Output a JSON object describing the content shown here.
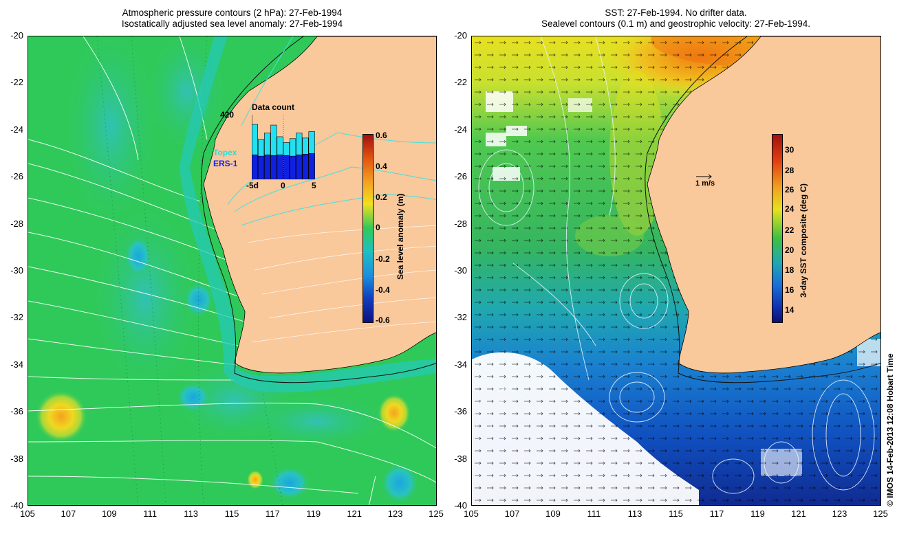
{
  "left_panel": {
    "title_line1": "Atmospheric pressure contours (2 hPa): 27-Feb-1994",
    "title_line2": "Isostatically adjusted sea level anomaly: 27-Feb-1994",
    "colorbar": {
      "label": "Sea level anomaly (m)",
      "ticks": [
        "0.6",
        "0.4",
        "0.2",
        "0",
        "-0.2",
        "-0.4",
        "-0.6"
      ]
    },
    "inset": {
      "title": "Data count",
      "ymax_label": "420",
      "legend_topex": "Topex",
      "legend_ers1": "ERS-1",
      "x_ticks": [
        "-5d",
        "0",
        "5"
      ],
      "total_counts": [
        0.85,
        0.62,
        0.72,
        0.84,
        0.66,
        0.57,
        0.63,
        0.72,
        0.64,
        0.74
      ],
      "ers1_counts": [
        0.38,
        0.36,
        0.38,
        0.37,
        0.38,
        0.37,
        0.36,
        0.38,
        0.39,
        0.4
      ]
    }
  },
  "right_panel": {
    "title_line1": "SST: 27-Feb-1994. No drifter data.",
    "title_line2": "Sealevel contours (0.1 m) and geostrophic velocity: 27-Feb-1994.",
    "colorbar": {
      "label": "3-day SST composite (deg C)",
      "ticks": [
        "30",
        "28",
        "26",
        "24",
        "22",
        "20",
        "18",
        "16",
        "14"
      ]
    },
    "scale_arrow_label": "1 m/s"
  },
  "axes": {
    "y_ticks": [
      "-20",
      "-22",
      "-24",
      "-26",
      "-28",
      "-30",
      "-32",
      "-34",
      "-36",
      "-38",
      "-40"
    ],
    "x_ticks": [
      "105",
      "107",
      "109",
      "111",
      "113",
      "115",
      "117",
      "119",
      "121",
      "123",
      "125"
    ]
  },
  "credit": "© IMOS 14-Feb-2013 12:08 Hobart Time",
  "colors": {
    "land": "#f9c89b",
    "ocean_left": "#2fc95a",
    "ocean_right": "#3db34a"
  }
}
